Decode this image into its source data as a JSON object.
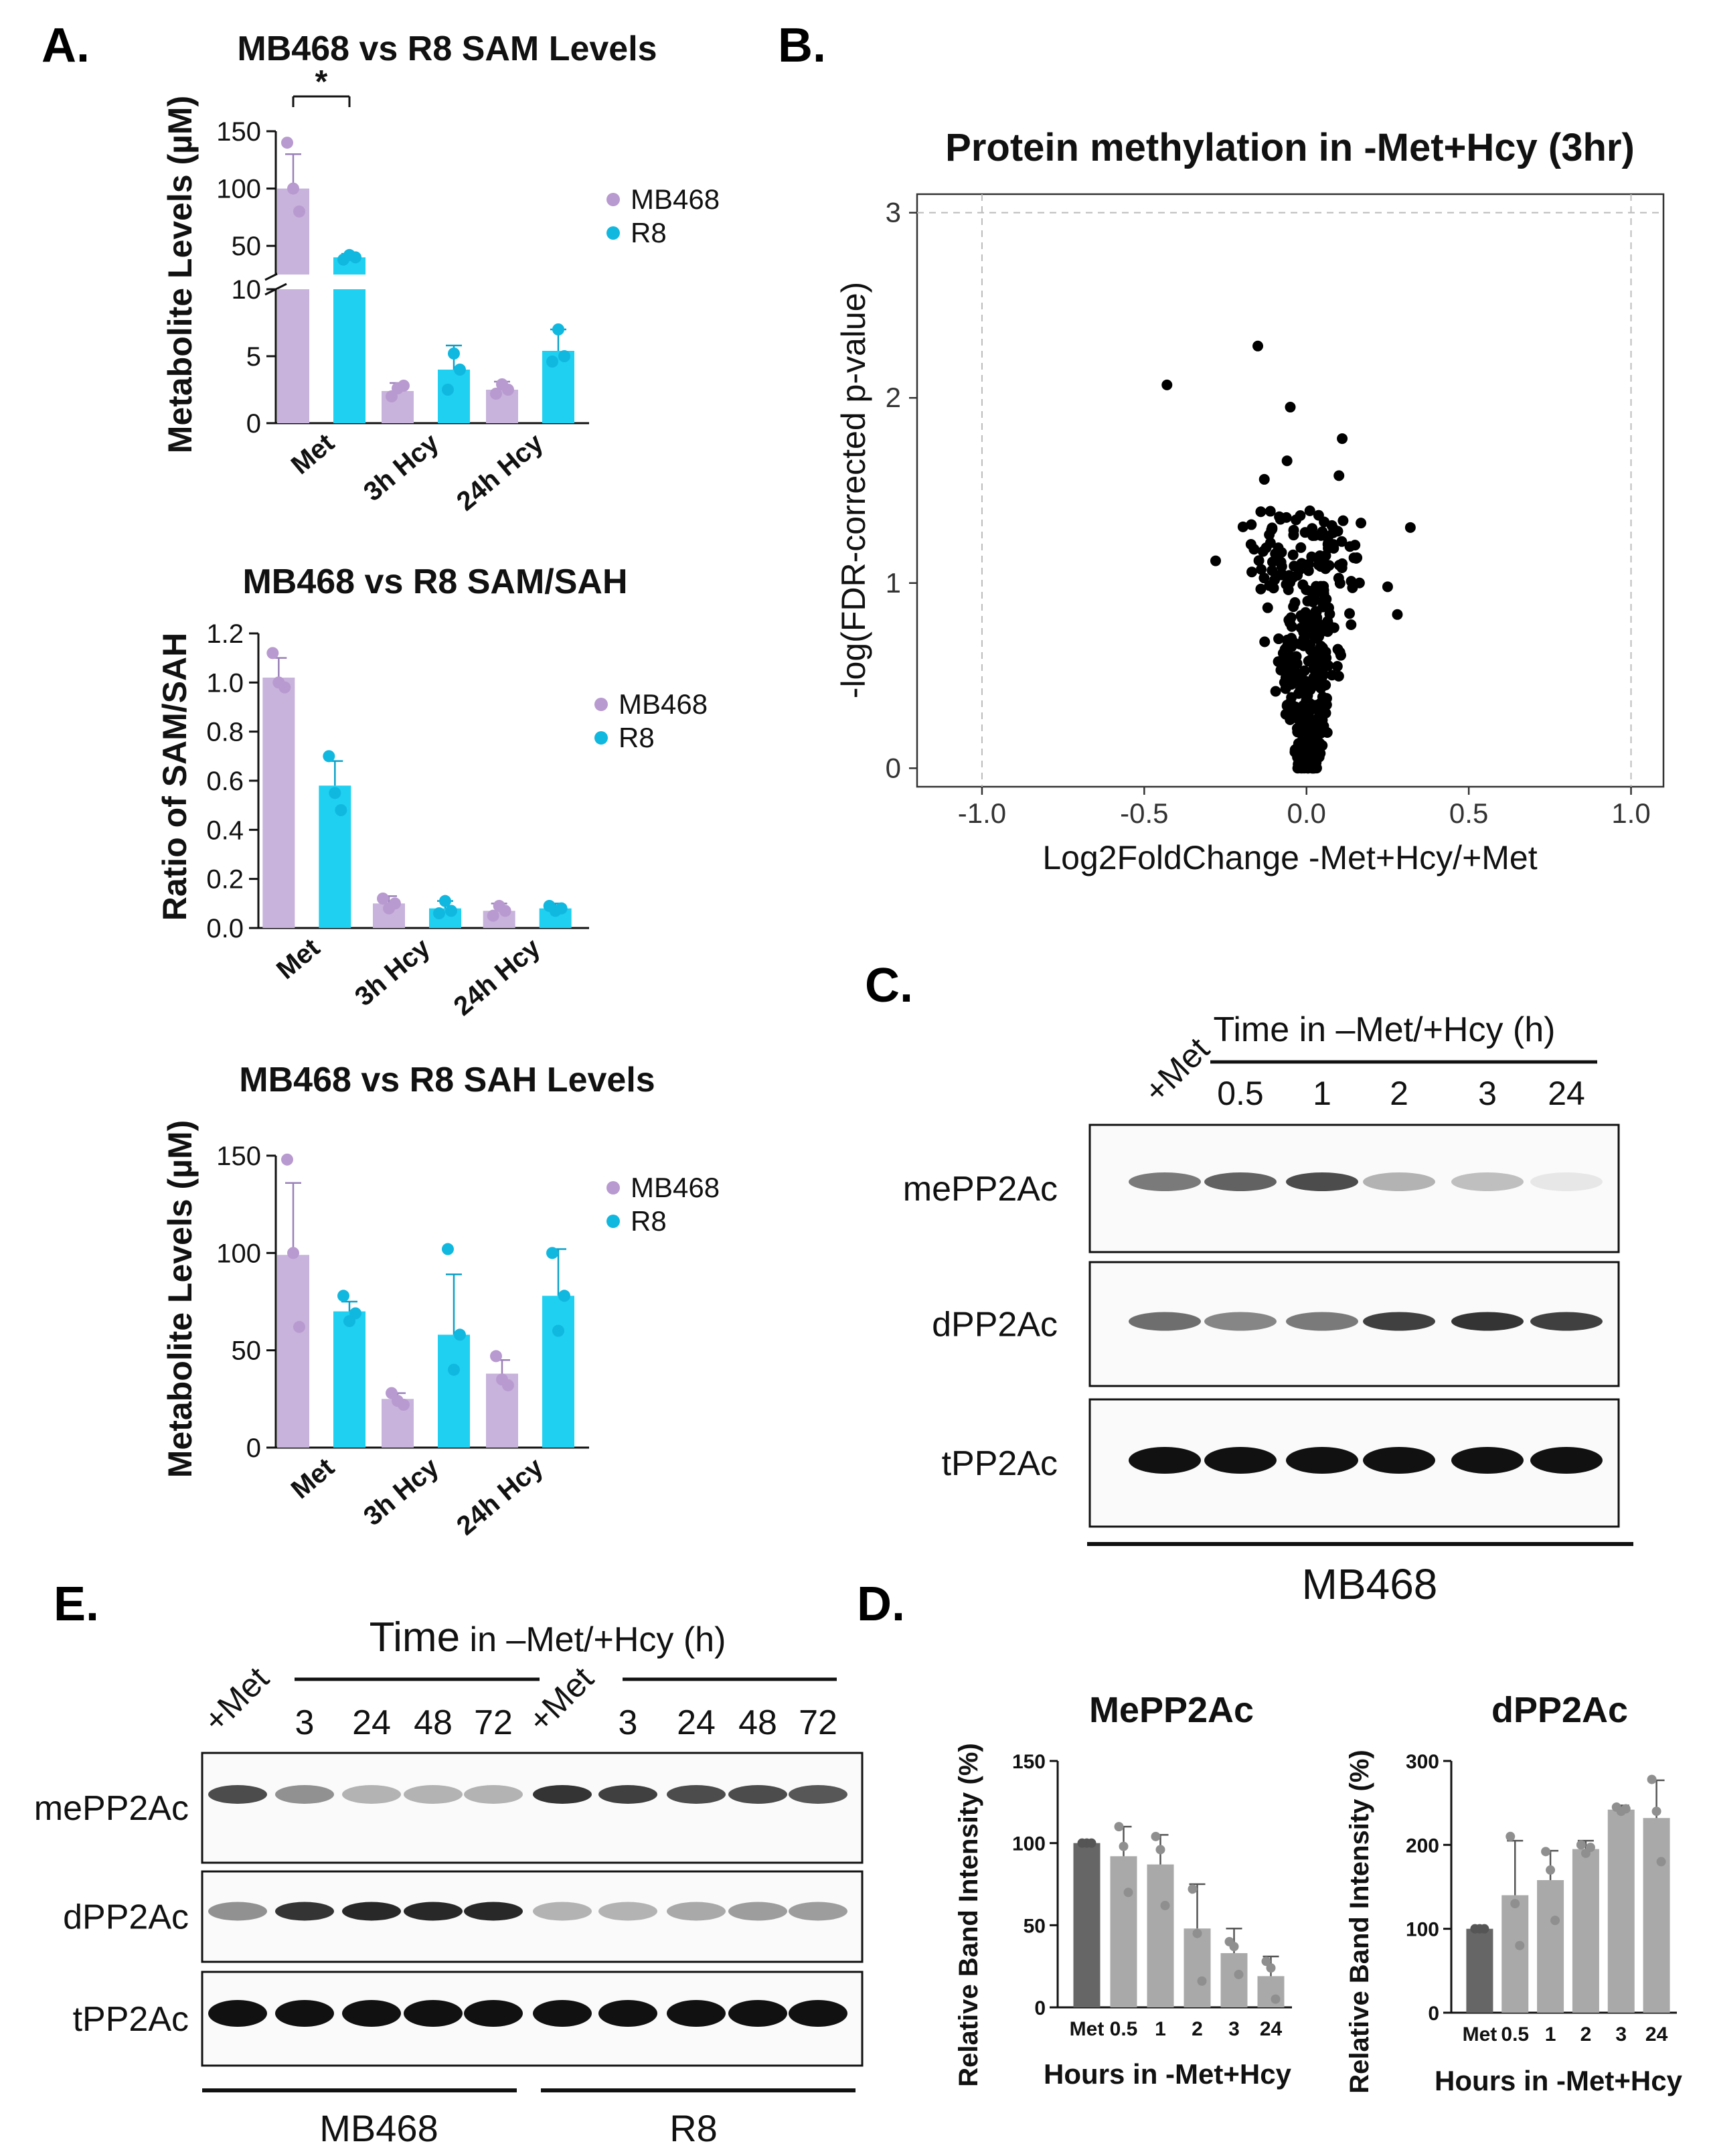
{
  "panel_labels": {
    "A": "A.",
    "B": "B.",
    "C": "C.",
    "D": "D.",
    "E": "E."
  },
  "colors": {
    "mb468": "#c8b3dc",
    "mb468_dot": "#b89ad0",
    "r8": "#1fd0f0",
    "r8_dot": "#10b8e0",
    "dark": "#666666",
    "light": "#a9a9a9",
    "light_dot": "#8f8f8f"
  },
  "chart_data": [
    {
      "id": "sam_levels",
      "type": "bar",
      "title": "MB468 vs R8 SAM Levels",
      "ylabel": "Metabolite Levels (µM)",
      "categories": [
        "Met",
        "3h Hcy",
        "24h Hcy"
      ],
      "axis_break": {
        "lower_range": [
          0,
          10
        ],
        "upper_range": [
          25,
          150
        ]
      },
      "lower_ticks": [
        "0",
        "5",
        "10"
      ],
      "upper_ticks": [
        "50",
        "100",
        "150"
      ],
      "series": [
        {
          "name": "MB468",
          "values": [
            100,
            2.4,
            2.5
          ],
          "errors": [
            30,
            0.6,
            0.6
          ],
          "points": [
            [
              140,
              100,
              80
            ],
            [
              2.0,
              2.6,
              2.8
            ],
            [
              2.2,
              2.9,
              2.5
            ]
          ]
        },
        {
          "name": "R8",
          "values": [
            40,
            4.0,
            5.4
          ],
          "errors": [
            3,
            1.8,
            1.6
          ],
          "points": [
            [
              38,
              42,
              40
            ],
            [
              2.5,
              5.2,
              4.0
            ],
            [
              4.6,
              7.0,
              5.0
            ]
          ]
        }
      ],
      "significance": {
        "label": "*",
        "between": "Met MB468 vs R8"
      }
    },
    {
      "id": "sam_sah_ratio",
      "type": "bar",
      "title": "MB468 vs R8 SAM/SAH",
      "ylabel": "Ratio of SAM/SAH",
      "ylim": [
        0,
        1.2
      ],
      "ticks": [
        "0.0",
        "0.2",
        "0.4",
        "0.6",
        "0.8",
        "1.0",
        "1.2"
      ],
      "categories": [
        "Met",
        "3h Hcy",
        "24h Hcy"
      ],
      "series": [
        {
          "name": "MB468",
          "values": [
            1.02,
            0.1,
            0.07
          ],
          "errors": [
            0.08,
            0.03,
            0.03
          ],
          "points": [
            [
              1.12,
              1.0,
              0.98
            ],
            [
              0.12,
              0.08,
              0.1
            ],
            [
              0.05,
              0.09,
              0.07
            ]
          ]
        },
        {
          "name": "R8",
          "values": [
            0.58,
            0.08,
            0.08
          ],
          "errors": [
            0.1,
            0.03,
            0.02
          ],
          "points": [
            [
              0.7,
              0.55,
              0.48
            ],
            [
              0.06,
              0.11,
              0.07
            ],
            [
              0.09,
              0.07,
              0.08
            ]
          ]
        }
      ]
    },
    {
      "id": "sah_levels",
      "type": "bar",
      "title": "MB468 vs R8 SAH Levels",
      "ylabel": "Metabolite Levels (µM)",
      "ylim": [
        0,
        150
      ],
      "ticks": [
        "0",
        "50",
        "100",
        "150"
      ],
      "categories": [
        "Met",
        "3h Hcy",
        "24h Hcy"
      ],
      "series": [
        {
          "name": "MB468",
          "values": [
            99,
            25,
            38
          ],
          "errors": [
            37,
            3,
            7
          ],
          "points": [
            [
              148,
              100,
              62
            ],
            [
              28,
              24,
              22
            ],
            [
              47,
              35,
              32
            ]
          ]
        },
        {
          "name": "R8",
          "values": [
            70,
            58,
            78
          ],
          "errors": [
            5,
            31,
            24
          ],
          "points": [
            [
              78,
              65,
              69
            ],
            [
              102,
              40,
              58
            ],
            [
              100,
              60,
              78
            ]
          ]
        }
      ]
    },
    {
      "id": "volcano",
      "type": "scatter",
      "title": "Protein methylation in -Met+Hcy (3hr)",
      "xlabel": "Log2FoldChange -Met+Hcy/+Met",
      "ylabel": "-log(FDR-corrected p-value)",
      "xlim": [
        -1.2,
        1.1
      ],
      "ylim": [
        -0.1,
        3.1
      ],
      "xticks": [
        "-1.0",
        "-0.5",
        "0.0",
        "0.5",
        "1.0"
      ],
      "yticks": [
        "0",
        "1",
        "2",
        "3"
      ],
      "reference_lines": {
        "y": 3,
        "x": [
          -1,
          1
        ]
      },
      "highlight_points": [
        [
          -0.43,
          2.07
        ],
        [
          -0.15,
          2.28
        ],
        [
          -0.05,
          1.95
        ],
        [
          0.11,
          1.78
        ],
        [
          0.32,
          1.3
        ],
        [
          -0.06,
          1.66
        ],
        [
          0.1,
          1.58
        ],
        [
          -0.13,
          1.56
        ],
        [
          -0.28,
          1.12
        ],
        [
          0.25,
          0.98
        ],
        [
          0.28,
          0.83
        ]
      ],
      "cluster": {
        "n": 420,
        "spread_x": 0.22,
        "max_y": 1.4
      }
    },
    {
      "id": "mepp2ac_quant",
      "type": "bar",
      "title": "MePP2Ac",
      "xlabel": "Hours in -Met+Hcy",
      "ylabel": "Relative Band Intensity (%)",
      "ylim": [
        0,
        150
      ],
      "ticks": [
        "0",
        "50",
        "100",
        "150"
      ],
      "categories": [
        "Met",
        "0.5",
        "1",
        "2",
        "3",
        "24"
      ],
      "values": [
        100,
        92,
        87,
        48,
        33,
        19
      ],
      "errors": [
        0,
        18,
        18,
        27,
        15,
        12
      ],
      "points": [
        [
          100,
          100,
          100
        ],
        [
          110,
          98,
          70
        ],
        [
          104,
          96,
          62
        ],
        [
          72,
          45,
          16
        ],
        [
          40,
          37,
          20
        ],
        [
          28,
          24,
          5
        ]
      ]
    },
    {
      "id": "dpp2ac_quant",
      "type": "bar",
      "title": "dPP2Ac",
      "xlabel": "Hours in -Met+Hcy",
      "ylabel": "Relative Band Intensity (%)",
      "ylim": [
        0,
        300
      ],
      "ticks": [
        "0",
        "100",
        "200",
        "300"
      ],
      "categories": [
        "Met",
        "0.5",
        "1",
        "2",
        "3",
        "24"
      ],
      "values": [
        100,
        140,
        158,
        195,
        242,
        232
      ],
      "errors": [
        0,
        65,
        35,
        10,
        5,
        45
      ],
      "points": [
        [
          100,
          100,
          100
        ],
        [
          210,
          130,
          80
        ],
        [
          192,
          170,
          110
        ],
        [
          200,
          190,
          197
        ],
        [
          245,
          240,
          243
        ],
        [
          278,
          240,
          180
        ]
      ]
    }
  ],
  "blot_c": {
    "header": "Time in –Met/+Hcy (h)",
    "control": "+Met",
    "lanes": [
      "0.5",
      "1",
      "2",
      "3",
      "24"
    ],
    "rows": [
      "mePP2Ac",
      "dPP2Ac",
      "tPP2Ac"
    ],
    "cell_line": "MB468",
    "intensity": {
      "mePP2Ac": [
        0.55,
        0.65,
        0.75,
        0.3,
        0.25,
        0.08
      ],
      "dPP2Ac": [
        0.6,
        0.5,
        0.55,
        0.8,
        0.85,
        0.8
      ],
      "tPP2Ac": [
        1,
        1,
        1,
        1,
        1,
        1
      ]
    }
  },
  "blot_e": {
    "header_time": "Time",
    "header_rest": " in –Met/+Hcy (h)",
    "control": "+Met",
    "lanes": [
      "3",
      "24",
      "48",
      "72"
    ],
    "rows": [
      "mePP2Ac",
      "dPP2Ac",
      "tPP2Ac"
    ],
    "cell_lines": [
      "MB468",
      "R8"
    ],
    "intensity": {
      "mePP2Ac": [
        0.75,
        0.45,
        0.3,
        0.3,
        0.3,
        0.85,
        0.8,
        0.75,
        0.75,
        0.7
      ],
      "dPP2Ac": [
        0.45,
        0.85,
        0.9,
        0.9,
        0.9,
        0.3,
        0.3,
        0.35,
        0.4,
        0.4
      ],
      "tPP2Ac": [
        1,
        1,
        1,
        1,
        1,
        1,
        1,
        1,
        1,
        1
      ]
    }
  }
}
